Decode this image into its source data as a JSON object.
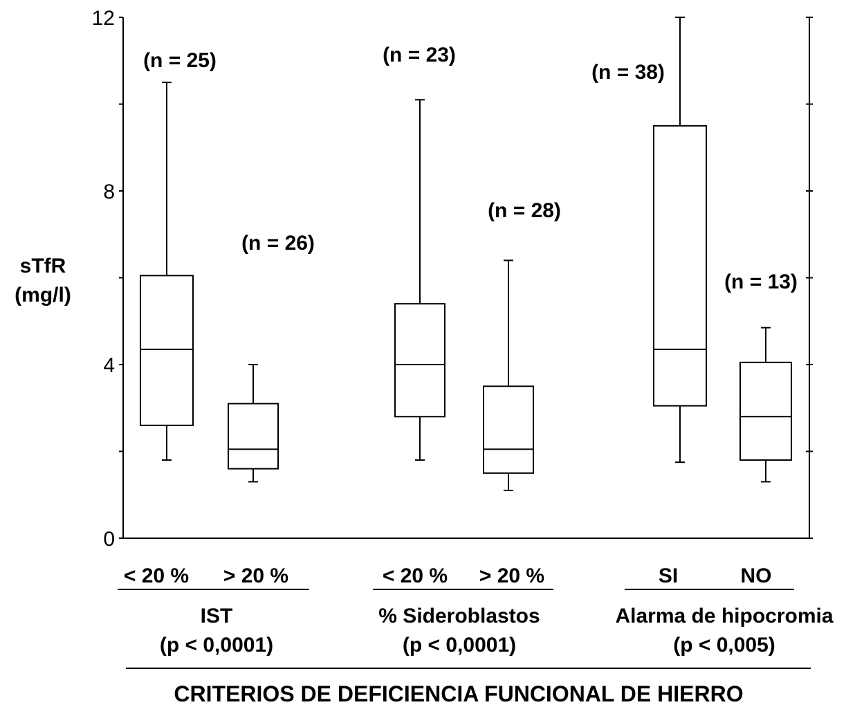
{
  "chart_data": {
    "type": "boxplot",
    "ylabel_line1": "sTfR",
    "ylabel_line2": "(mg/l)",
    "ylim": [
      0,
      12
    ],
    "yticks": [
      "0",
      "4",
      "8",
      "12"
    ],
    "xtitle": "CRITERIOS DE DEFICIENCIA FUNCIONAL DE HIERRO",
    "groups": [
      {
        "name": "IST",
        "pvalue": "(p < 0,0001)",
        "boxes": [
          {
            "category": "< 20 %",
            "n_label": "(n = 25)",
            "min": 1.8,
            "q1": 2.6,
            "median": 4.35,
            "q3": 6.05,
            "max": 10.5
          },
          {
            "category": "> 20 %",
            "n_label": "(n = 26)",
            "min": 1.3,
            "q1": 1.6,
            "median": 2.05,
            "q3": 3.1,
            "max": 4.0
          }
        ]
      },
      {
        "name": "% Sideroblastos",
        "pvalue": "(p < 0,0001)",
        "boxes": [
          {
            "category": "< 20 %",
            "n_label": "(n = 23)",
            "min": 1.8,
            "q1": 2.8,
            "median": 4.0,
            "q3": 5.4,
            "max": 10.1
          },
          {
            "category": "> 20 %",
            "n_label": "(n = 28)",
            "min": 1.1,
            "q1": 1.5,
            "median": 2.05,
            "q3": 3.5,
            "max": 6.4
          }
        ]
      },
      {
        "name": "Alarma de hipocromia",
        "pvalue": "(p < 0,005)",
        "boxes": [
          {
            "category": "SI",
            "n_label": "(n = 38)",
            "min": 1.75,
            "q1": 3.05,
            "median": 4.35,
            "q3": 9.5,
            "max": 12.0
          },
          {
            "category": "NO",
            "n_label": "(n = 13)",
            "min": 1.3,
            "q1": 1.8,
            "median": 2.8,
            "q3": 4.05,
            "max": 4.85
          }
        ]
      }
    ]
  }
}
